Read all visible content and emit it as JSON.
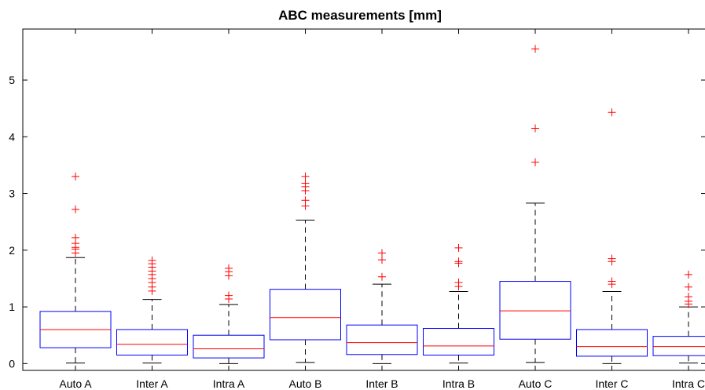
{
  "chart_data": {
    "type": "boxplot",
    "title": "ABC measurements [mm]",
    "xlabel": "",
    "ylabel": "",
    "ylim": [
      -0.12,
      5.9
    ],
    "yticks": [
      0,
      1,
      2,
      3,
      4,
      5
    ],
    "grid": false,
    "colors": {
      "box": "#0000ff",
      "median": "#ff0000",
      "whisker": "#000000",
      "outlier": "#ff0000"
    },
    "categories": [
      "Auto A",
      "Inter A",
      "Intra A",
      "Auto B",
      "Inter B",
      "Intra B",
      "Auto C",
      "Inter C",
      "Intra C"
    ],
    "boxes": [
      {
        "label": "Auto A",
        "min": 0.01,
        "q1": 0.28,
        "median": 0.6,
        "q3": 0.92,
        "max": 1.87,
        "outliers": [
          1.95,
          2.02,
          2.05,
          2.12,
          2.22,
          2.72,
          3.3
        ]
      },
      {
        "label": "Inter A",
        "min": 0.01,
        "q1": 0.15,
        "median": 0.34,
        "q3": 0.6,
        "max": 1.13,
        "outliers": [
          1.28,
          1.35,
          1.43,
          1.5,
          1.57,
          1.63,
          1.7,
          1.76,
          1.82
        ]
      },
      {
        "label": "Intra A",
        "min": 0.0,
        "q1": 0.1,
        "median": 0.26,
        "q3": 0.5,
        "max": 1.04,
        "outliers": [
          1.14,
          1.2,
          1.55,
          1.62,
          1.68
        ]
      },
      {
        "label": "Auto B",
        "min": 0.02,
        "q1": 0.42,
        "median": 0.81,
        "q3": 1.31,
        "max": 2.53,
        "outliers": [
          2.78,
          2.88,
          3.05,
          3.12,
          3.18,
          3.3
        ]
      },
      {
        "label": "Inter B",
        "min": 0.0,
        "q1": 0.16,
        "median": 0.37,
        "q3": 0.68,
        "max": 1.4,
        "outliers": [
          1.53,
          1.83,
          1.95
        ]
      },
      {
        "label": "Intra B",
        "min": 0.01,
        "q1": 0.15,
        "median": 0.31,
        "q3": 0.62,
        "max": 1.27,
        "outliers": [
          1.36,
          1.43,
          1.77,
          1.8,
          2.04
        ]
      },
      {
        "label": "Auto C",
        "min": 0.02,
        "q1": 0.43,
        "median": 0.93,
        "q3": 1.45,
        "max": 2.83,
        "outliers": [
          3.55,
          4.15,
          5.55
        ]
      },
      {
        "label": "Inter C",
        "min": 0.0,
        "q1": 0.13,
        "median": 0.3,
        "q3": 0.6,
        "max": 1.27,
        "outliers": [
          1.4,
          1.45,
          1.8,
          1.85,
          4.43
        ]
      },
      {
        "label": "Intra C",
        "min": 0.01,
        "q1": 0.14,
        "median": 0.3,
        "q3": 0.48,
        "max": 1.0,
        "outliers": [
          1.05,
          1.1,
          1.18,
          1.35,
          1.57
        ]
      }
    ]
  }
}
